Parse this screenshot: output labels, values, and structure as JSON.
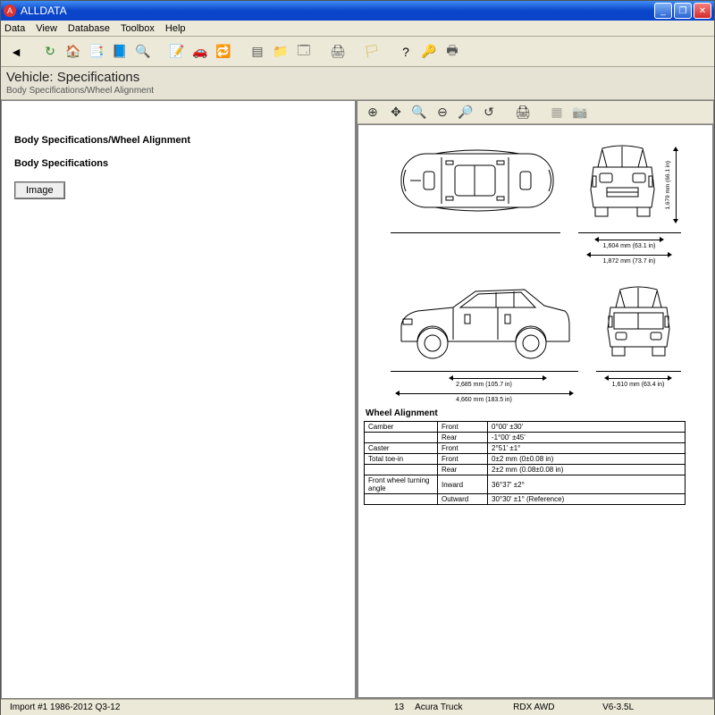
{
  "app": {
    "title": "ALLDATA"
  },
  "menu": {
    "items": [
      "Data",
      "View",
      "Database",
      "Toolbox",
      "Help"
    ]
  },
  "toolbar": {
    "icons": [
      {
        "name": "back-arrow-icon",
        "glyph": "◄",
        "color": "#000"
      },
      {
        "sep": true
      },
      {
        "name": "refresh-icon",
        "glyph": "↻",
        "color": "#2a8a2a"
      },
      {
        "name": "home-icon",
        "glyph": "🏠",
        "color": "#8a5a2a"
      },
      {
        "name": "tree-icon",
        "glyph": "📑",
        "color": "#2a6ad5"
      },
      {
        "name": "book-icon",
        "glyph": "📘",
        "color": "#2a6ad5"
      },
      {
        "name": "search-icon",
        "glyph": "🔍",
        "color": "#2a8a2a"
      },
      {
        "sep": true
      },
      {
        "name": "note-icon",
        "glyph": "📝",
        "color": "#d58a2a"
      },
      {
        "name": "car-red-icon",
        "glyph": "🚗",
        "color": "#c33"
      },
      {
        "name": "car-swap-icon",
        "glyph": "🔁",
        "color": "#c33"
      },
      {
        "sep": true
      },
      {
        "name": "list-icon",
        "glyph": "▤",
        "color": "#555"
      },
      {
        "name": "folder-icon",
        "glyph": "📁",
        "color": "#d5a23a"
      },
      {
        "name": "window-icon",
        "glyph": "🗔",
        "color": "#555"
      },
      {
        "sep": true
      },
      {
        "name": "print-icon",
        "glyph": "🖨",
        "color": "#555"
      },
      {
        "sep": true
      },
      {
        "name": "flag-icon",
        "glyph": "🏳",
        "color": "#d5b43a"
      },
      {
        "sep": true
      },
      {
        "name": "help-icon",
        "glyph": "?",
        "color": "#000"
      },
      {
        "name": "key-icon",
        "glyph": "🔑",
        "color": "#c5972a"
      },
      {
        "name": "print2-icon",
        "glyph": "🖶",
        "color": "#555"
      }
    ]
  },
  "header": {
    "title": "Vehicle:  Specifications",
    "breadcrumb": "Body Specifications/Wheel Alignment"
  },
  "left": {
    "section1": "Body Specifications/Wheel Alignment",
    "section2": "Body Specifications",
    "image_btn": "Image"
  },
  "right_toolbar": {
    "icons": [
      {
        "name": "zoom-in-icon",
        "glyph": "⊕"
      },
      {
        "name": "pan-icon",
        "glyph": "✥"
      },
      {
        "name": "zoom-region-icon",
        "glyph": "🔍"
      },
      {
        "name": "zoom-out-icon",
        "glyph": "⊖"
      },
      {
        "name": "zoom-fit-icon",
        "glyph": "🔎"
      },
      {
        "name": "zoom-reset-icon",
        "glyph": "↺"
      },
      {
        "sep": true
      },
      {
        "name": "print-img-icon",
        "glyph": "🖨"
      },
      {
        "sep": true
      },
      {
        "name": "grid-icon",
        "glyph": "▦",
        "dim": true
      },
      {
        "name": "camera-icon",
        "glyph": "📷",
        "dim": true
      }
    ]
  },
  "diagram": {
    "dims": {
      "height": "1,679 mm (66.1 in)",
      "front_track": "1,604 mm (63.1 in)",
      "overall_width": "1,872 mm (73.7 in)",
      "wheelbase": "2,685 mm (105.7 in)",
      "overall_length": "4,660 mm (183.5 in)",
      "rear_track": "1,610 mm (63.4 in)"
    },
    "colors": {
      "line": "#000000",
      "bg": "#ffffff"
    }
  },
  "spec_table": {
    "title": "Wheel Alignment",
    "rows": [
      {
        "k": "Camber",
        "s": "Front",
        "v": "0°00' ±30'"
      },
      {
        "k": "",
        "s": "Rear",
        "v": "-1°00' ±45'"
      },
      {
        "k": "Caster",
        "s": "Front",
        "v": "2°51' ±1°"
      },
      {
        "k": "Total toe-in",
        "s": "Front",
        "v": "0±2 mm (0±0.08 in)"
      },
      {
        "k": "",
        "s": "Rear",
        "v": "2±2 mm (0.08±0.08 in)"
      },
      {
        "k": "Front wheel turning angle",
        "s": "Inward",
        "v": "36°37' ±2°"
      },
      {
        "k": "",
        "s": "Outward",
        "v": "30°30' ±1° (Reference)"
      }
    ]
  },
  "status": {
    "left": "Import #1 1986-2012 Q3-12",
    "col2": "13",
    "col3": "Acura Truck",
    "col4": "RDX AWD",
    "col5": "V6-3.5L"
  }
}
